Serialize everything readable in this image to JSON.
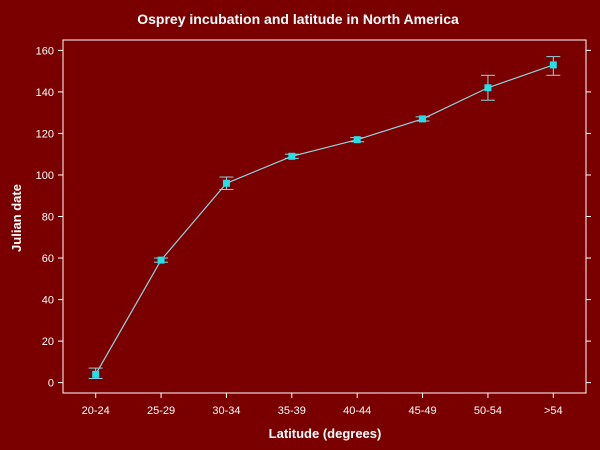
{
  "colors": {
    "background": "#7a0000",
    "axis": "#ffffff",
    "line": "#8fd3e0",
    "marker": "#22e0e8",
    "text": "#ffffff"
  },
  "chart_data": {
    "type": "line",
    "title": "Osprey incubation and latitude in North America",
    "xlabel": "Latitude (degrees)",
    "ylabel": "Julian date",
    "categories": [
      "20-24",
      "25-29",
      "30-34",
      "35-39",
      "40-44",
      "45-49",
      "50-54",
      ">54"
    ],
    "series": [
      {
        "values": [
          4,
          59,
          96,
          109,
          117,
          127,
          142,
          153
        ],
        "error_low": [
          2,
          58,
          93,
          108,
          116,
          126,
          136,
          148
        ],
        "error_high": [
          7,
          60,
          99,
          110,
          118,
          128,
          148,
          157
        ]
      }
    ],
    "yticks": [
      0,
      20,
      40,
      60,
      80,
      100,
      120,
      140,
      160
    ],
    "ylim": [
      -5,
      165
    ],
    "grid": false,
    "legend": "none"
  }
}
